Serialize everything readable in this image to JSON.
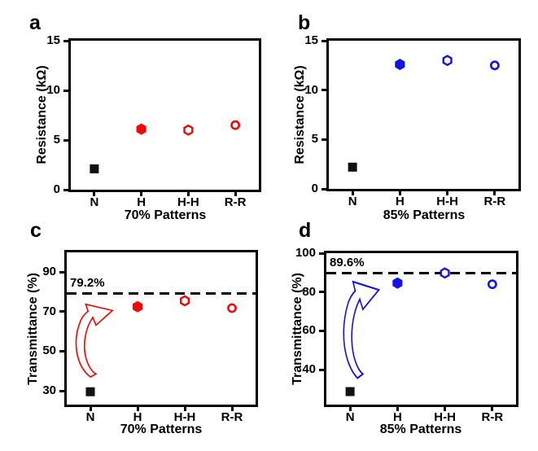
{
  "figure": {
    "background": "#ffffff",
    "text_color": "#000000",
    "accent_red": "#f40606",
    "accent_blue": "#1414e0"
  },
  "chart_data": [
    {
      "type": "scatter",
      "panel_label": "a",
      "xlabel": "70% Patterns",
      "ylabel": "Resistance (kΩ)",
      "categories": [
        "N",
        "H",
        "H-H",
        "R-R"
      ],
      "ylim": [
        0,
        15
      ],
      "yticks": [
        0,
        5,
        10,
        15
      ],
      "grid": false,
      "accent_color": "#f40606",
      "points": [
        {
          "category": "N",
          "value": 2.1,
          "marker": "square-filled",
          "color": "#111111"
        },
        {
          "category": "H",
          "value": 6.1,
          "marker": "hexagon-filled",
          "color": "#f40606"
        },
        {
          "category": "H-H",
          "value": 6.0,
          "marker": "hexagon-open",
          "color": "#f40606"
        },
        {
          "category": "R-R",
          "value": 6.5,
          "marker": "circle-open",
          "color": "#f40606"
        }
      ]
    },
    {
      "type": "scatter",
      "panel_label": "b",
      "xlabel": "85% Patterns",
      "ylabel": "Resistance (kΩ)",
      "categories": [
        "N",
        "H",
        "H-H",
        "R-R"
      ],
      "ylim": [
        0,
        15
      ],
      "yticks": [
        0,
        5,
        10,
        15
      ],
      "grid": false,
      "accent_color": "#1414e0",
      "points": [
        {
          "category": "N",
          "value": 2.2,
          "marker": "square-filled",
          "color": "#111111"
        },
        {
          "category": "H",
          "value": 12.6,
          "marker": "hexagon-filled",
          "color": "#1414e0"
        },
        {
          "category": "H-H",
          "value": 13.0,
          "marker": "hexagon-open",
          "color": "#1414e0"
        },
        {
          "category": "R-R",
          "value": 12.5,
          "marker": "circle-open",
          "color": "#1414e0"
        }
      ]
    },
    {
      "type": "scatter",
      "panel_label": "c",
      "xlabel": "70% Patterns",
      "ylabel": "Transmittance (%)",
      "categories": [
        "N",
        "H",
        "H-H",
        "R-R"
      ],
      "ylim": [
        23,
        100
      ],
      "yticks": [
        30,
        50,
        70,
        90
      ],
      "grid": false,
      "accent_color": "#f40606",
      "refline": {
        "value": 79.2,
        "label": "79.2%"
      },
      "arrow": {
        "meaning": "increase-from-N-to-H",
        "color": "#f40606"
      },
      "points": [
        {
          "category": "N",
          "value": 29.5,
          "marker": "square-filled",
          "color": "#111111"
        },
        {
          "category": "H",
          "value": 72.5,
          "marker": "hexagon-filled",
          "color": "#f40606"
        },
        {
          "category": "H-H",
          "value": 75.5,
          "marker": "hexagon-open",
          "color": "#f40606"
        },
        {
          "category": "R-R",
          "value": 71.8,
          "marker": "circle-open",
          "color": "#f40606"
        }
      ]
    },
    {
      "type": "scatter",
      "panel_label": "d",
      "xlabel": "85% Patterns",
      "ylabel": "Transmittance (%)",
      "categories": [
        "N",
        "H",
        "H-H",
        "R-R"
      ],
      "ylim": [
        22,
        100
      ],
      "yticks": [
        40,
        60,
        80,
        100
      ],
      "grid": false,
      "accent_color": "#1414e0",
      "refline": {
        "value": 89.6,
        "label": "89.6%"
      },
      "arrow": {
        "meaning": "increase-from-N-to-H",
        "color": "#1414e0"
      },
      "points": [
        {
          "category": "N",
          "value": 28.7,
          "marker": "square-filled",
          "color": "#111111"
        },
        {
          "category": "H",
          "value": 84.6,
          "marker": "hexagon-filled",
          "color": "#1414e0"
        },
        {
          "category": "H-H",
          "value": 89.8,
          "marker": "hexagon-open",
          "color": "#1414e0"
        },
        {
          "category": "R-R",
          "value": 84.0,
          "marker": "circle-open",
          "color": "#1414e0"
        }
      ]
    }
  ]
}
